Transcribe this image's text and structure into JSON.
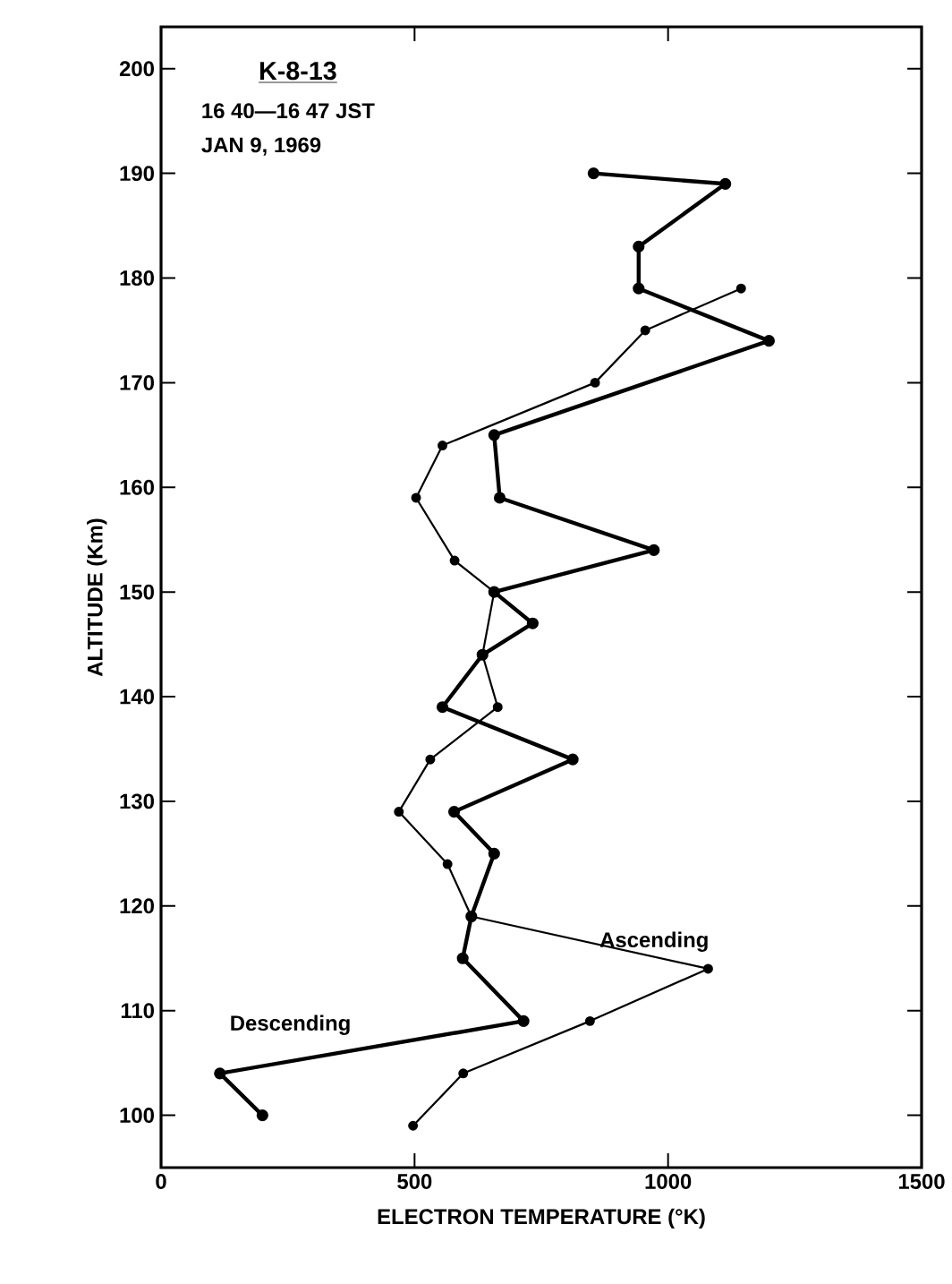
{
  "chart_data": {
    "type": "line",
    "title": "K-8-13",
    "annotations": [
      "16 40—16 47 JST",
      "JAN 9, 1969"
    ],
    "xlabel": "ELECTRON TEMPERATURE (°K)",
    "ylabel": "ALTITUDE (Km)",
    "xlim": [
      0,
      1500
    ],
    "xticks": [
      0,
      500,
      1000,
      1500
    ],
    "ylim": [
      95,
      204
    ],
    "yticks": [
      100,
      110,
      120,
      130,
      140,
      150,
      160,
      170,
      180,
      190,
      200
    ],
    "marker": "circle",
    "line_style": "solid",
    "grid": false,
    "series": [
      {
        "name": "Descending",
        "color": "#000000",
        "x": [
          200,
          116,
          715,
          595,
          612,
          657,
          578,
          812,
          555,
          634,
          733,
          657,
          972,
          668,
          657,
          1199,
          942,
          942,
          1113,
          853
        ],
        "values": [
          100,
          104,
          109,
          115,
          119,
          125,
          129,
          134,
          139,
          144,
          147,
          150,
          154,
          159,
          165,
          174,
          179,
          183,
          189,
          190
        ]
      },
      {
        "name": "Ascending",
        "color": "#000000",
        "x": [
          497,
          596,
          846,
          1079,
          612,
          565,
          469,
          531,
          664,
          634,
          657,
          579,
          503,
          555,
          856,
          955,
          1144
        ],
        "values": [
          99,
          104,
          109,
          114,
          119,
          124,
          129,
          134,
          139,
          144,
          150,
          153,
          159,
          164,
          170,
          175,
          179
        ]
      }
    ]
  }
}
